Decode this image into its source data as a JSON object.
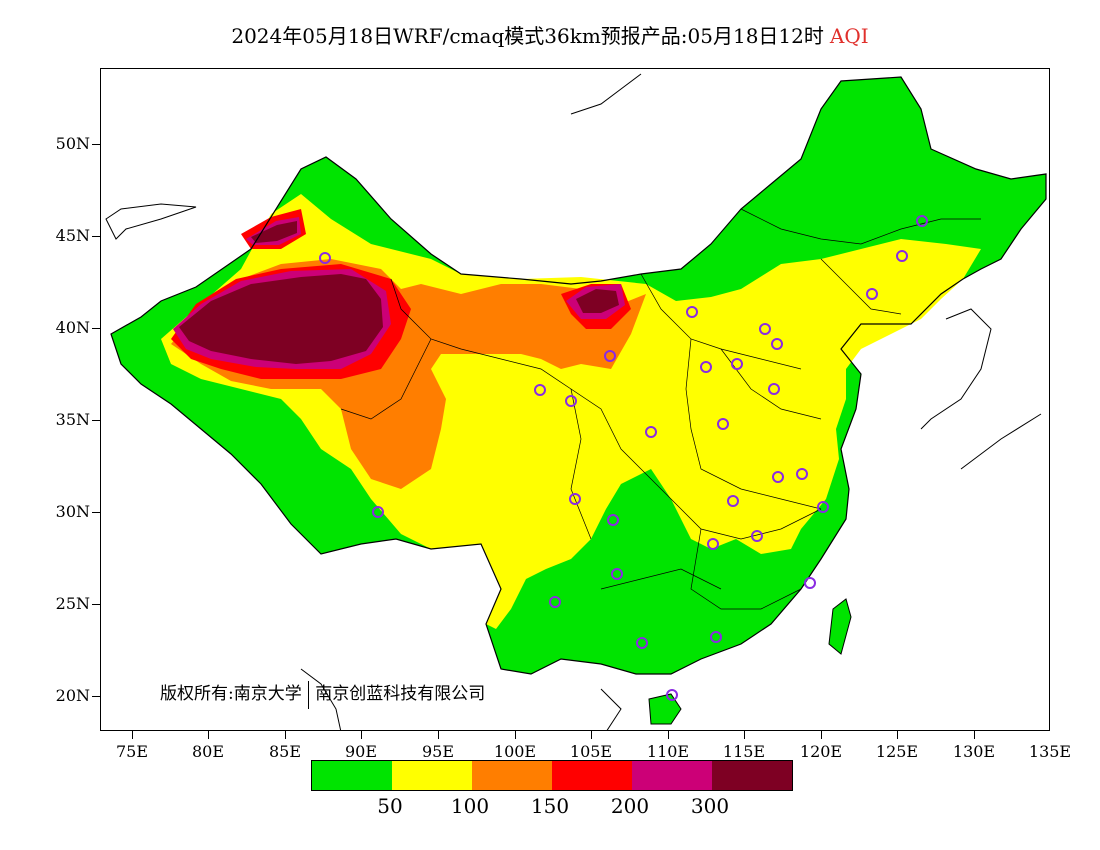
{
  "title": {
    "main": "2024年05月18日WRF/cmaq模式36km预报产品:05月18日12时",
    "highlight": "AQI",
    "highlight_color": "#e0302c"
  },
  "axes": {
    "y_labels": [
      "50N",
      "45N",
      "40N",
      "35N",
      "30N",
      "25N",
      "20N"
    ],
    "x_labels": [
      "75E",
      "80E",
      "85E",
      "90E",
      "95E",
      "100E",
      "105E",
      "110E",
      "115E",
      "120E",
      "125E",
      "130E",
      "135E"
    ],
    "lon_range": [
      73,
      135
    ],
    "lat_range": [
      18,
      54
    ]
  },
  "legend": {
    "colors": [
      "#00e400",
      "#ffff00",
      "#ff7e00",
      "#ff0000",
      "#cc0077",
      "#7e0023"
    ],
    "labels": [
      "50",
      "100",
      "150",
      "200",
      "300"
    ]
  },
  "copyright": {
    "left": "版权所有:南京大学",
    "right": "南京创蓝科技有限公司"
  },
  "map": {
    "background_color": "#ffffff",
    "outline_color": "#000000",
    "station_marker_color": "#8a2be2"
  }
}
